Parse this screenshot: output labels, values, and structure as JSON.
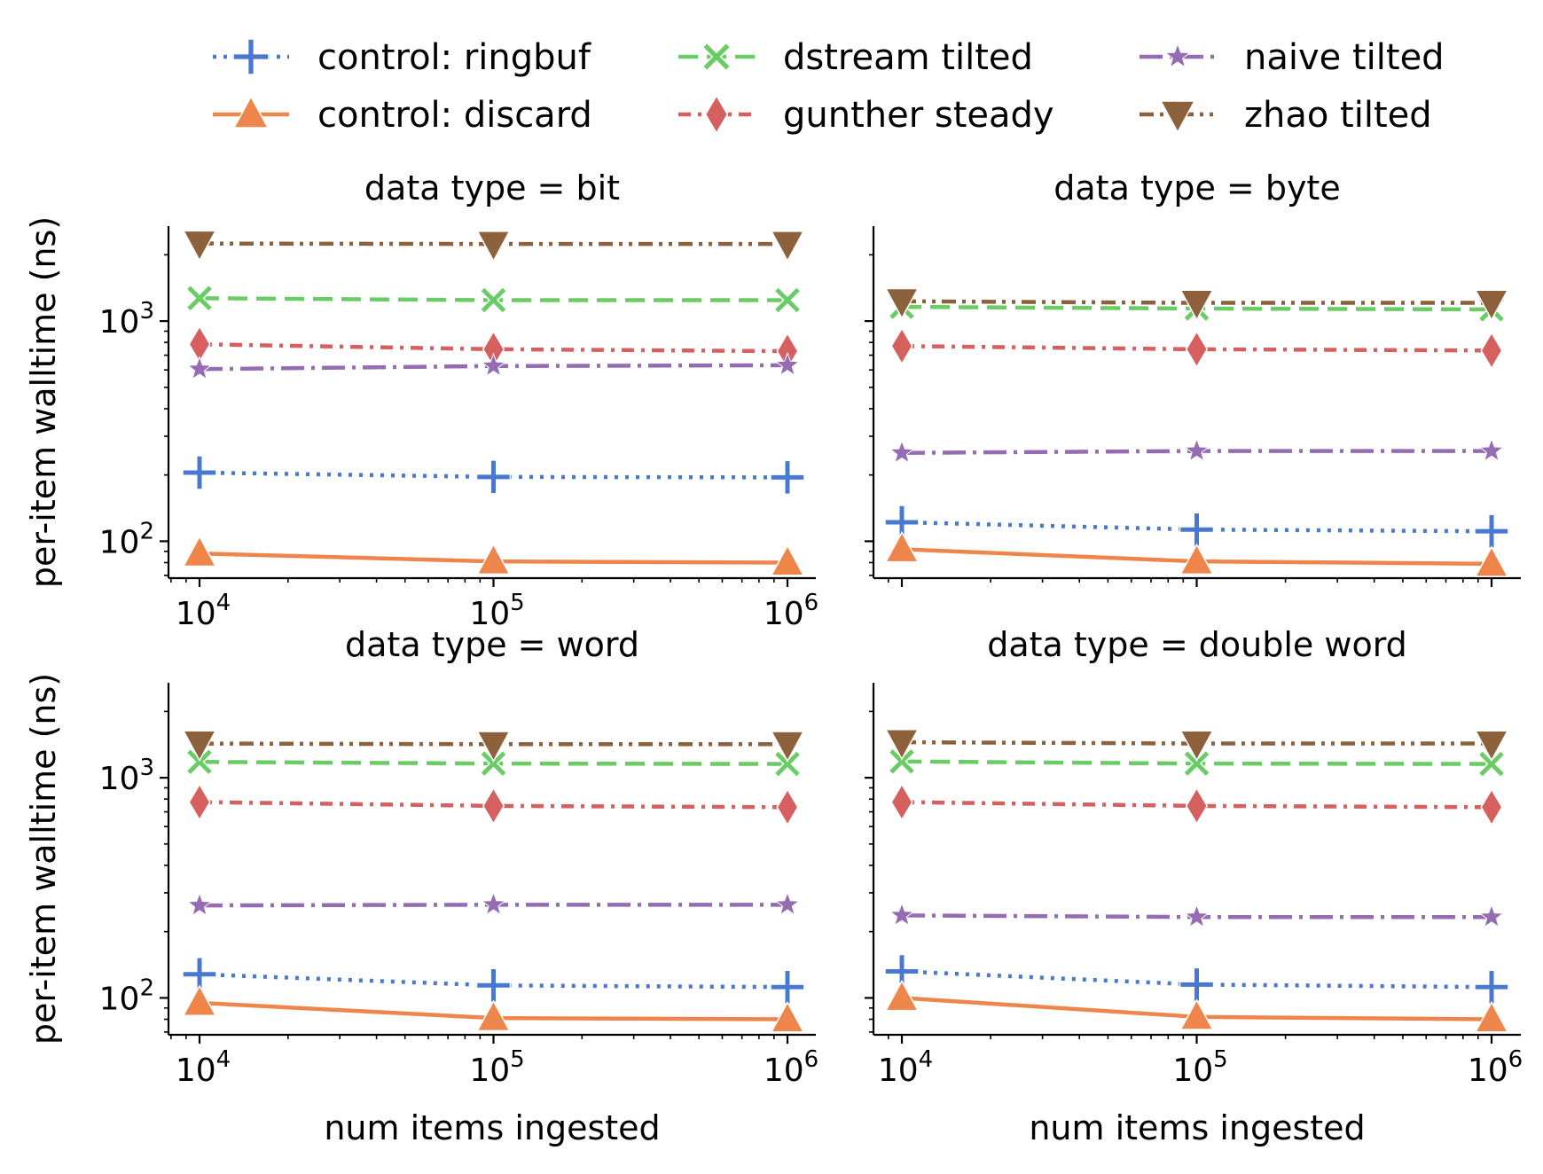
{
  "legend": [
    {
      "label": "control: ringbuf",
      "marker": "plus",
      "dash": "dot",
      "color": "#4878d0"
    },
    {
      "label": "control: discard",
      "marker": "triangle-up",
      "dash": "solid",
      "color": "#ee854a"
    },
    {
      "label": "dstream tilted",
      "marker": "x",
      "dash": "dash",
      "color": "#6acc64"
    },
    {
      "label": "gunther steady",
      "marker": "diamond",
      "dash": "dashdot-dense",
      "color": "#d65f5f"
    },
    {
      "label": "naive tilted",
      "marker": "star",
      "dash": "dashdot",
      "color": "#956cb4"
    },
    {
      "label": "zhao tilted",
      "marker": "triangle-down",
      "dash": "dashdotdot",
      "color": "#8c613c"
    }
  ],
  "chart_data": [
    {
      "type": "line",
      "title": "data type = bit",
      "xlabel": "",
      "ylabel": "per-item walltime (ns)",
      "xscale": "log",
      "yscale": "log",
      "x": [
        10000,
        100000,
        1000000
      ],
      "xticks": [
        "10",
        "10",
        "10"
      ],
      "xtick_exponents": [
        "4",
        "5",
        "6"
      ],
      "yticks": [
        "10",
        "10"
      ],
      "ytick_exponents": [
        "2",
        "3"
      ],
      "ylim": [
        68,
        2700
      ],
      "series": [
        {
          "name": "control: ringbuf",
          "values": [
            205,
            196,
            195
          ]
        },
        {
          "name": "control: discard",
          "values": [
            88,
            81,
            80
          ]
        },
        {
          "name": "dstream tilted",
          "values": [
            1270,
            1245,
            1245
          ]
        },
        {
          "name": "gunther steady",
          "values": [
            785,
            745,
            730
          ]
        },
        {
          "name": "naive tilted",
          "values": [
            605,
            625,
            630
          ]
        },
        {
          "name": "zhao tilted",
          "values": [
            2250,
            2240,
            2240
          ]
        }
      ]
    },
    {
      "type": "line",
      "title": "data type = byte",
      "xlabel": "",
      "ylabel": "",
      "xscale": "log",
      "yscale": "log",
      "x": [
        10000,
        100000,
        1000000
      ],
      "xticks": [],
      "xtick_exponents": [],
      "yticks": [],
      "ytick_exponents": [],
      "ylim": [
        68,
        2700
      ],
      "series": [
        {
          "name": "control: ringbuf",
          "values": [
            122,
            113,
            111
          ]
        },
        {
          "name": "control: discard",
          "values": [
            92,
            81,
            79
          ]
        },
        {
          "name": "dstream tilted",
          "values": [
            1160,
            1140,
            1130
          ]
        },
        {
          "name": "gunther steady",
          "values": [
            770,
            745,
            735
          ]
        },
        {
          "name": "naive tilted",
          "values": [
            252,
            257,
            257
          ]
        },
        {
          "name": "zhao tilted",
          "values": [
            1230,
            1210,
            1210
          ]
        }
      ]
    },
    {
      "type": "line",
      "title": "data type = word",
      "xlabel": "num items ingested",
      "ylabel": "per-item walltime (ns)",
      "xscale": "log",
      "yscale": "log",
      "x": [
        10000,
        100000,
        1000000
      ],
      "xticks": [
        "10",
        "10",
        "10"
      ],
      "xtick_exponents": [
        "4",
        "5",
        "6"
      ],
      "yticks": [
        "10",
        "10"
      ],
      "ytick_exponents": [
        "2",
        "3"
      ],
      "ylim": [
        68,
        2700
      ],
      "series": [
        {
          "name": "control: ringbuf",
          "values": [
            128,
            114,
            112
          ]
        },
        {
          "name": "control: discard",
          "values": [
            95,
            81,
            80
          ]
        },
        {
          "name": "dstream tilted",
          "values": [
            1180,
            1160,
            1155
          ]
        },
        {
          "name": "gunther steady",
          "values": [
            775,
            745,
            735
          ]
        },
        {
          "name": "naive tilted",
          "values": [
            263,
            265,
            265
          ]
        },
        {
          "name": "zhao tilted",
          "values": [
            1430,
            1420,
            1420
          ]
        }
      ]
    },
    {
      "type": "line",
      "title": "data type = double word",
      "xlabel": "num items ingested",
      "ylabel": "",
      "xscale": "log",
      "yscale": "log",
      "x": [
        10000,
        100000,
        1000000
      ],
      "xticks": [
        "10",
        "10",
        "10"
      ],
      "xtick_exponents": [
        "4",
        "5",
        "6"
      ],
      "yticks": [],
      "ytick_exponents": [],
      "ylim": [
        68,
        2700
      ],
      "series": [
        {
          "name": "control: ringbuf",
          "values": [
            132,
            115,
            112
          ]
        },
        {
          "name": "control: discard",
          "values": [
            100,
            82,
            80
          ]
        },
        {
          "name": "dstream tilted",
          "values": [
            1185,
            1160,
            1155
          ]
        },
        {
          "name": "gunther steady",
          "values": [
            775,
            745,
            735
          ]
        },
        {
          "name": "naive tilted",
          "values": [
            237,
            233,
            233
          ]
        },
        {
          "name": "zhao tilted",
          "values": [
            1450,
            1430,
            1430
          ]
        }
      ]
    }
  ]
}
